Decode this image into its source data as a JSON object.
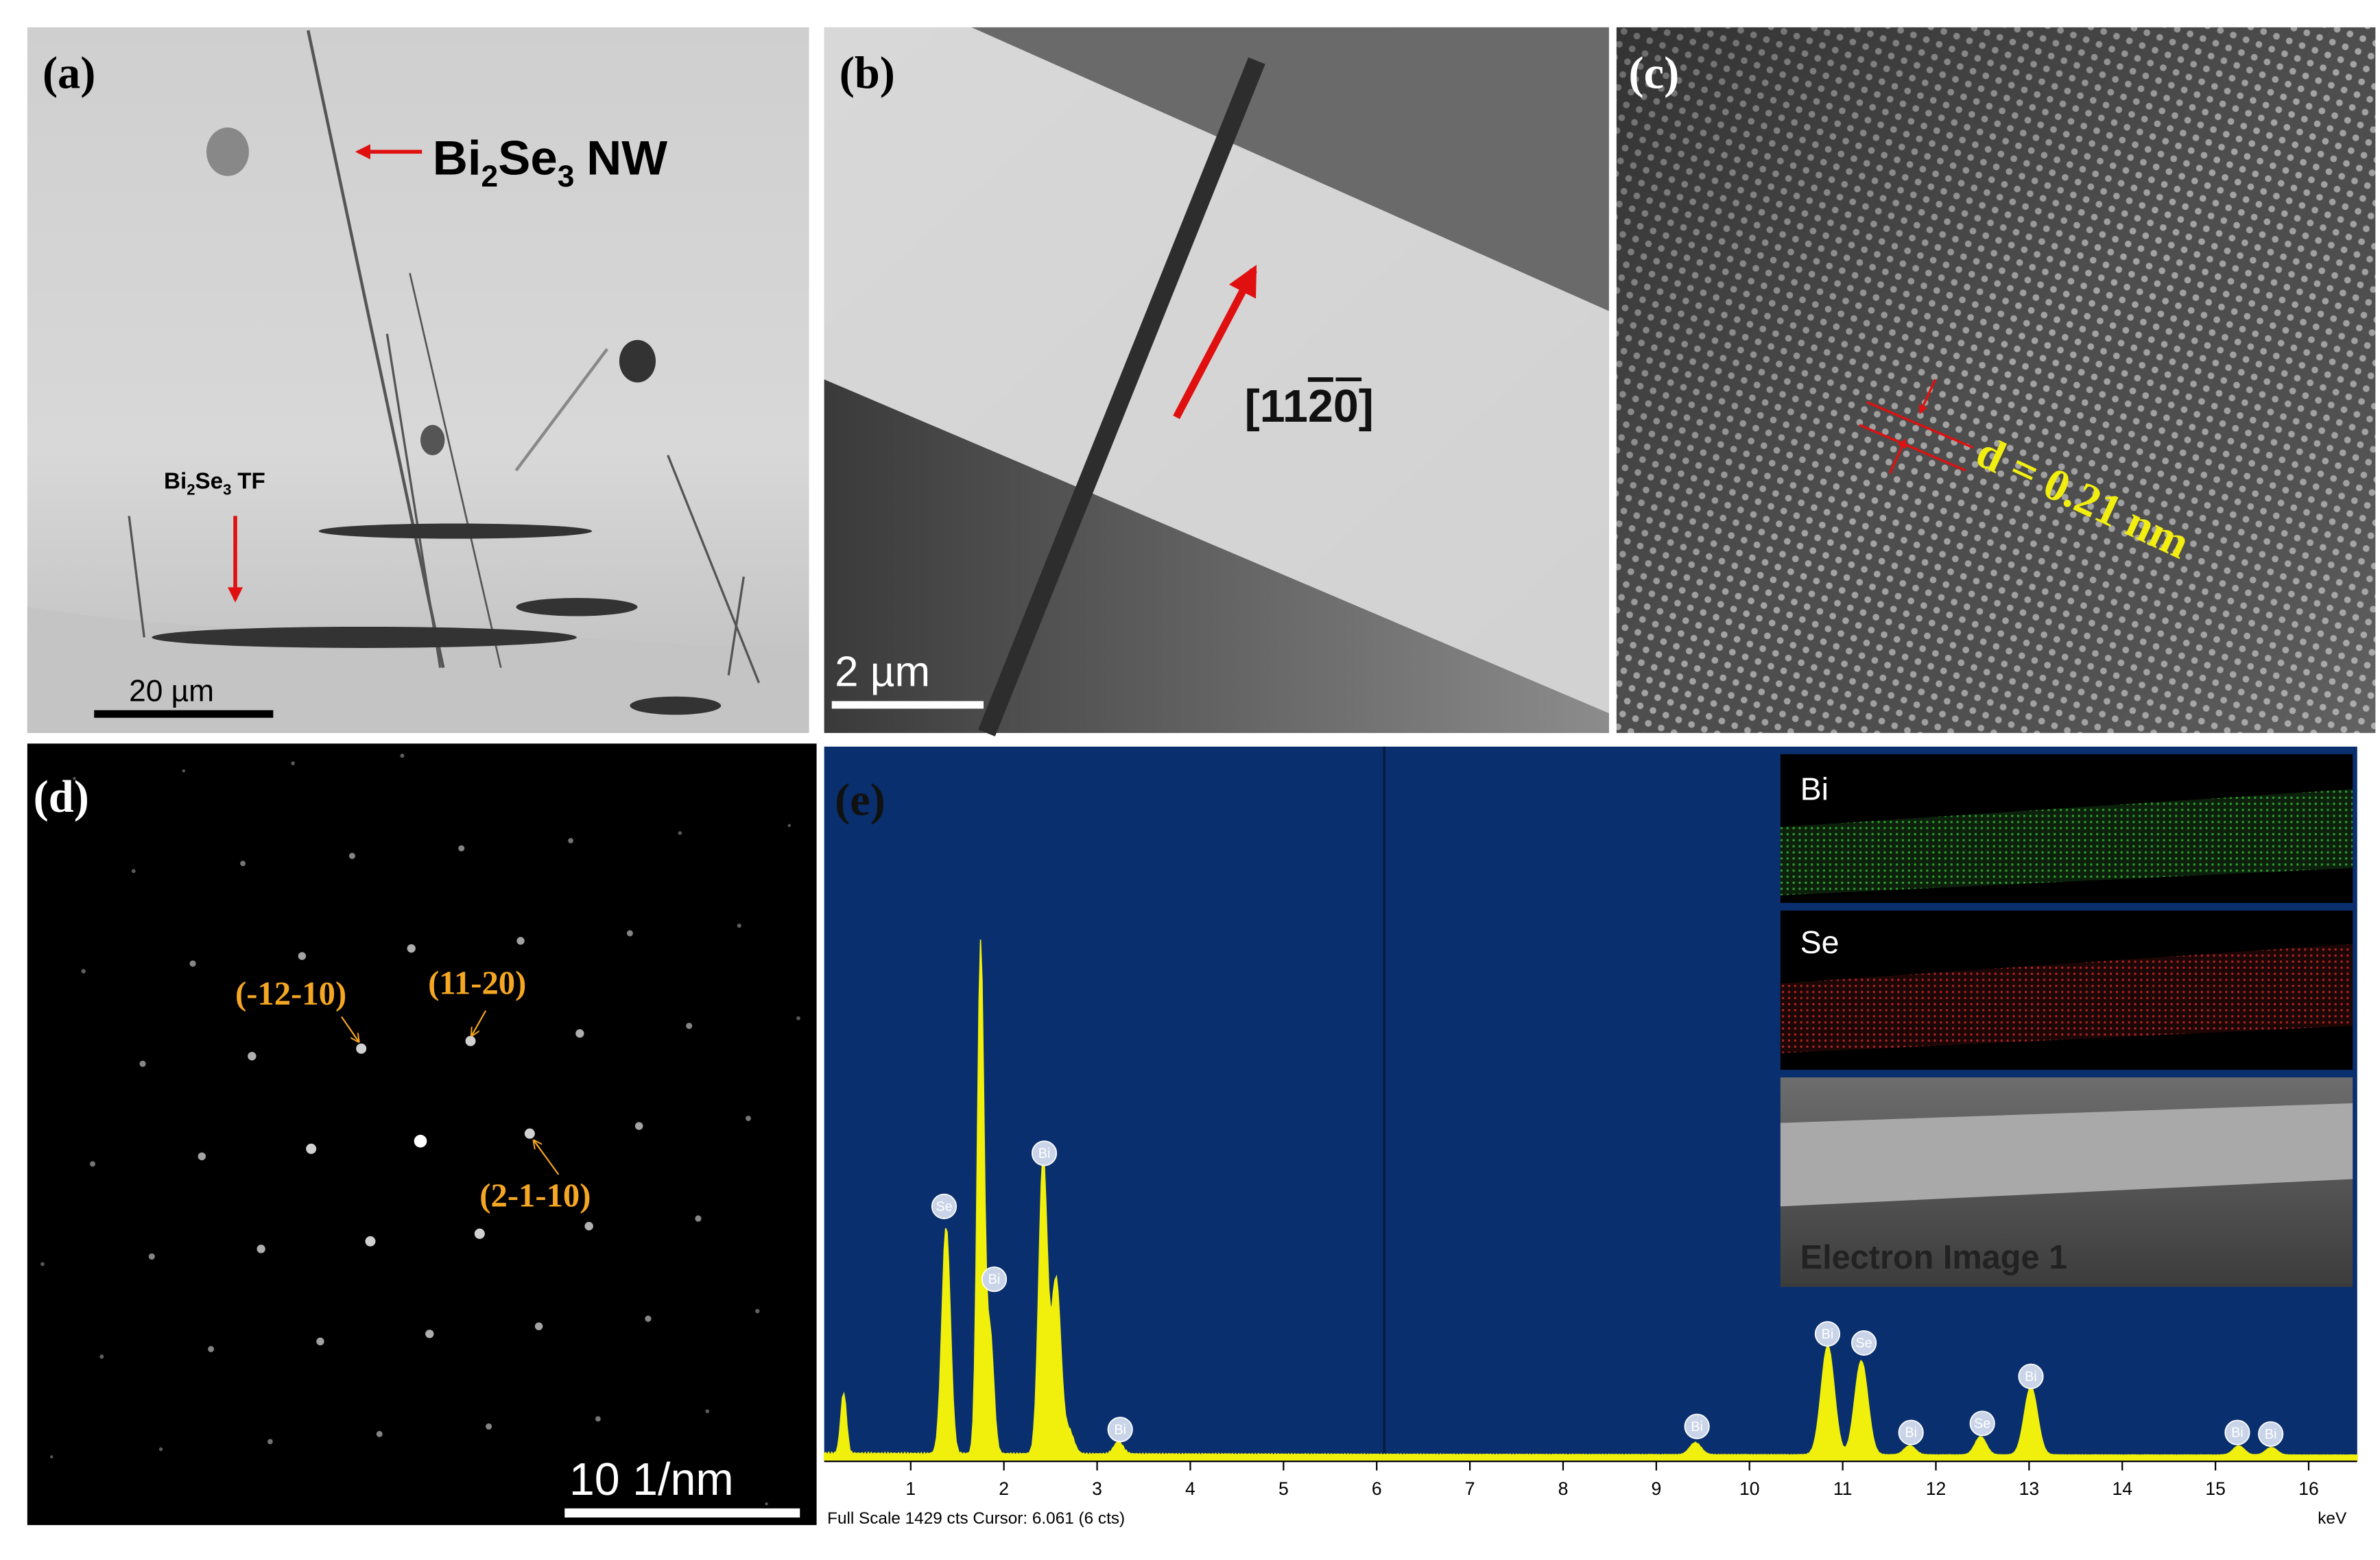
{
  "panel_a": {
    "label": "(a)",
    "nanowire_label": [
      "Bi",
      "2",
      "Se",
      "3",
      "NW"
    ],
    "film_label": [
      "Bi",
      "2",
      "Se",
      "3",
      "TF"
    ],
    "scale_bar": "20 µm"
  },
  "panel_b": {
    "label": "(b)",
    "direction": [
      "[11",
      "2",
      "0]"
    ],
    "scale_bar": "2 µm"
  },
  "panel_c": {
    "label": "(c)",
    "spacing": "d = 0.21 nm"
  },
  "panel_d": {
    "label": "(d)",
    "spots": [
      "(-12-10)",
      "(11-20)",
      "(2-1-10)"
    ],
    "scale_bar": "10 1/nm"
  },
  "panel_e": {
    "label": "(e)",
    "peak_labels": [
      "Se",
      "Bi",
      "Bi",
      "Bi",
      "Bi",
      "Bi",
      "Se",
      "Bi",
      "Se",
      "Bi",
      "Bi",
      "Bi"
    ],
    "xticks": [
      1,
      2,
      3,
      4,
      5,
      6,
      7,
      8,
      9,
      10,
      11,
      12,
      13,
      14,
      15,
      16
    ],
    "x_unit": "keV",
    "status": "Full Scale 1429 cts Cursor: 6.061  (6 cts)",
    "maps": [
      "Bi",
      "Se"
    ],
    "electron_image": "Electron Image 1"
  }
}
